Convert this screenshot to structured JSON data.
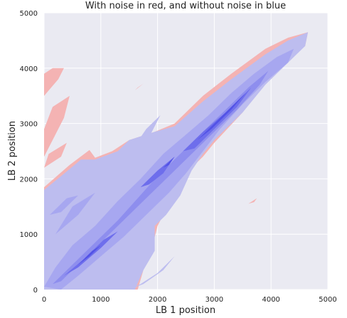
{
  "chart_data": {
    "type": "kde-contour",
    "title": "With noise in red, and without noise in blue",
    "xlabel": "LB 1 position",
    "ylabel": "LB 2 position",
    "xlim": [
      0,
      5000
    ],
    "ylim": [
      0,
      5000
    ],
    "xticks": [
      0,
      1000,
      2000,
      3000,
      4000,
      5000
    ],
    "yticks": [
      0,
      1000,
      2000,
      3000,
      4000,
      5000
    ],
    "xtick_labels": [
      "0",
      "1000",
      "2000",
      "3000",
      "4000",
      "5000"
    ],
    "ytick_labels": [
      "0",
      "1000",
      "2000",
      "3000",
      "4000",
      "5000"
    ],
    "grid": true,
    "background": "#EAEAF2",
    "series": [
      {
        "color": "#F4B3B3",
        "regions": [
          {
            "polygon": [
              [
                0,
                0
              ],
              [
                0,
                1850
              ],
              [
                450,
                2250
              ],
              [
                800,
                2520
              ],
              [
                900,
                2380
              ],
              [
                1200,
                2500
              ],
              [
                1500,
                2700
              ],
              [
                1950,
                2850
              ],
              [
                2300,
                3000
              ],
              [
                2800,
                3500
              ],
              [
                3300,
                3900
              ],
              [
                3900,
                4350
              ],
              [
                4300,
                4550
              ],
              [
                4650,
                4650
              ],
              [
                4600,
                4400
              ],
              [
                4300,
                4150
              ],
              [
                3900,
                3800
              ],
              [
                3500,
                3200
              ],
              [
                3000,
                2650
              ],
              [
                2800,
                2400
              ],
              [
                2600,
                2200
              ],
              [
                2400,
                1800
              ],
              [
                2150,
                1450
              ],
              [
                2000,
                1150
              ],
              [
                1900,
                750
              ],
              [
                1750,
                350
              ],
              [
                1650,
                0
              ]
            ]
          },
          {
            "polygon": [
              [
                0,
                3500
              ],
              [
                0,
                3900
              ],
              [
                150,
                4000
              ],
              [
                350,
                4000
              ],
              [
                250,
                3800
              ]
            ]
          },
          {
            "polygon": [
              [
                0,
                2400
              ],
              [
                0,
                2900
              ],
              [
                150,
                3300
              ],
              [
                450,
                3500
              ],
              [
                350,
                3100
              ],
              [
                150,
                2700
              ]
            ]
          },
          {
            "polygon": [
              [
                0,
                2200
              ],
              [
                80,
                2450
              ],
              [
                400,
                2650
              ],
              [
                300,
                2400
              ]
            ]
          },
          {
            "polygon": [
              [
                1600,
                3600
              ],
              [
                1750,
                3720
              ],
              [
                1650,
                3650
              ]
            ]
          },
          {
            "polygon": [
              [
                3600,
                1550
              ],
              [
                3750,
                1650
              ],
              [
                3700,
                1580
              ]
            ]
          }
        ]
      },
      {
        "color": "#BDBDEF",
        "regions": [
          {
            "polygon": [
              [
                0,
                0
              ],
              [
                0,
                1800
              ],
              [
                300,
                2050
              ],
              [
                650,
                2350
              ],
              [
                900,
                2350
              ],
              [
                1300,
                2500
              ],
              [
                1500,
                2700
              ],
              [
                1950,
                2850
              ],
              [
                2300,
                2950
              ],
              [
                2800,
                3400
              ],
              [
                3300,
                3800
              ],
              [
                3900,
                4250
              ],
              [
                4300,
                4500
              ],
              [
                4650,
                4650
              ],
              [
                4600,
                4400
              ],
              [
                4300,
                4100
              ],
              [
                3900,
                3700
              ],
              [
                3500,
                3200
              ],
              [
                3000,
                2700
              ],
              [
                2800,
                2450
              ],
              [
                2600,
                2150
              ],
              [
                2400,
                1700
              ],
              [
                2150,
                1350
              ],
              [
                1950,
                1150
              ],
              [
                1950,
                700
              ],
              [
                1750,
                350
              ],
              [
                1600,
                0
              ]
            ]
          },
          {
            "polygon": [
              [
                1500,
                2450
              ],
              [
                1800,
                2900
              ],
              [
                2050,
                3150
              ],
              [
                1850,
                2750
              ]
            ]
          },
          {
            "polygon": [
              [
                1500,
                0
              ],
              [
                1750,
                100
              ],
              [
                2100,
                350
              ],
              [
                2300,
                600
              ],
              [
                2000,
                300
              ],
              [
                1700,
                100
              ]
            ]
          }
        ]
      },
      {
        "color": "#A7A7F0",
        "regions": [
          {
            "polygon": [
              [
                0,
                50
              ],
              [
                200,
                400
              ],
              [
                500,
                800
              ],
              [
                900,
                1150
              ],
              [
                1300,
                1600
              ],
              [
                1700,
                2000
              ],
              [
                2100,
                2450
              ],
              [
                2500,
                2800
              ],
              [
                2900,
                3150
              ],
              [
                3300,
                3550
              ],
              [
                3700,
                3900
              ],
              [
                4100,
                4200
              ],
              [
                4400,
                4350
              ],
              [
                4300,
                4100
              ],
              [
                3900,
                3750
              ],
              [
                3500,
                3350
              ],
              [
                3100,
                2900
              ],
              [
                2800,
                2500
              ],
              [
                2500,
                2100
              ],
              [
                2200,
                1750
              ],
              [
                1800,
                1350
              ],
              [
                1400,
                950
              ],
              [
                1000,
                600
              ],
              [
                600,
                250
              ],
              [
                300,
                0
              ]
            ]
          },
          {
            "polygon": [
              [
                200,
                1000
              ],
              [
                500,
                1500
              ],
              [
                900,
                1750
              ],
              [
                600,
                1350
              ]
            ]
          },
          {
            "polygon": [
              [
                100,
                1350
              ],
              [
                400,
                1650
              ],
              [
                600,
                1700
              ],
              [
                300,
                1400
              ]
            ]
          }
        ]
      },
      {
        "color": "#8E8EEE",
        "regions": [
          {
            "polygon": [
              [
                150,
                100
              ],
              [
                500,
                450
              ],
              [
                900,
                850
              ],
              [
                1300,
                1250
              ],
              [
                1650,
                1650
              ],
              [
                2000,
                2050
              ],
              [
                2400,
                2450
              ],
              [
                2800,
                2850
              ],
              [
                3200,
                3250
              ],
              [
                3600,
                3650
              ],
              [
                3950,
                3950
              ],
              [
                3800,
                3700
              ],
              [
                3400,
                3250
              ],
              [
                3000,
                2850
              ],
              [
                2600,
                2450
              ],
              [
                2200,
                2050
              ],
              [
                1800,
                1650
              ],
              [
                1400,
                1250
              ],
              [
                1000,
                850
              ],
              [
                600,
                450
              ],
              [
                300,
                150
              ]
            ]
          }
        ]
      },
      {
        "color": "#6E6EEC",
        "regions": [
          {
            "polygon": [
              [
                350,
                250
              ],
              [
                700,
                550
              ],
              [
                1050,
                900
              ],
              [
                1300,
                1050
              ],
              [
                1000,
                750
              ],
              [
                600,
                400
              ]
            ]
          },
          {
            "polygon": [
              [
                1700,
                1850
              ],
              [
                2000,
                2150
              ],
              [
                2300,
                2400
              ],
              [
                2100,
                2100
              ],
              [
                1850,
                1900
              ]
            ]
          },
          {
            "polygon": [
              [
                2450,
                2500
              ],
              [
                2800,
                2850
              ],
              [
                3200,
                3200
              ],
              [
                3550,
                3550
              ],
              [
                3650,
                3650
              ],
              [
                3400,
                3300
              ],
              [
                3000,
                2900
              ],
              [
                2650,
                2550
              ]
            ]
          }
        ]
      },
      {
        "color": "#5252E6",
        "regions": [
          {
            "polygon": [
              [
                600,
                450
              ],
              [
                850,
                700
              ],
              [
                1000,
                800
              ],
              [
                800,
                600
              ]
            ]
          },
          {
            "polygon": [
              [
                2100,
                2200
              ],
              [
                2300,
                2400
              ],
              [
                2200,
                2250
              ]
            ]
          },
          {
            "polygon": [
              [
                2700,
                2700
              ],
              [
                3000,
                3000
              ],
              [
                3350,
                3350
              ],
              [
                3550,
                3550
              ],
              [
                3300,
                3250
              ],
              [
                2950,
                2900
              ]
            ]
          }
        ]
      }
    ]
  }
}
